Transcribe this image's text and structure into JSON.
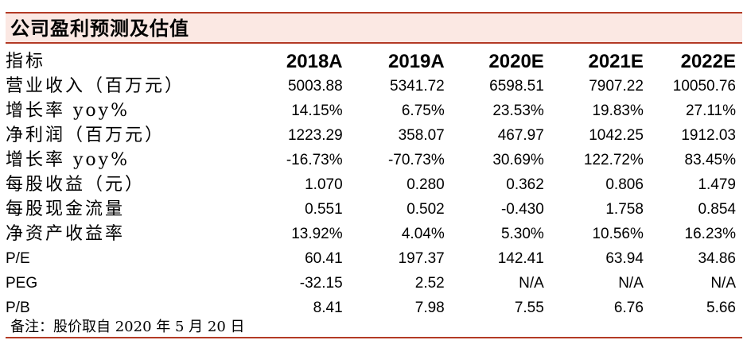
{
  "title": "公司盈利预测及估值",
  "table": {
    "header": {
      "label": "指标",
      "years": [
        "2018A",
        "2019A",
        "2020E",
        "2021E",
        "2022E"
      ]
    },
    "rows": [
      {
        "label": "营业收入（百万元）",
        "values": [
          "5003.88",
          "5341.72",
          "6598.51",
          "7907.22",
          "10050.76"
        ]
      },
      {
        "label": "增长率 yoy%",
        "values": [
          "14.15%",
          "6.75%",
          "23.53%",
          "19.83%",
          "27.11%"
        ]
      },
      {
        "label": "净利润（百万元）",
        "values": [
          "1223.29",
          "358.07",
          "467.97",
          "1042.25",
          "1912.03"
        ]
      },
      {
        "label": "增长率 yoy%",
        "values": [
          "-16.73%",
          "-70.73%",
          "30.69%",
          "122.72%",
          "83.45%"
        ]
      },
      {
        "label": "每股收益（元）",
        "values": [
          "1.070",
          "0.280",
          "0.362",
          "0.806",
          "1.479"
        ]
      },
      {
        "label": "每股现金流量",
        "values": [
          "0.551",
          "0.502",
          "-0.430",
          "1.758",
          "0.854"
        ]
      },
      {
        "label": "净资产收益率",
        "values": [
          "13.92%",
          "4.04%",
          "5.30%",
          "10.56%",
          "16.23%"
        ]
      },
      {
        "label": "P/E",
        "values": [
          "60.41",
          "197.37",
          "142.41",
          "63.94",
          "34.86"
        ]
      },
      {
        "label": "PEG",
        "values": [
          "-32.15",
          "2.52",
          "N/A",
          "N/A",
          "N/A"
        ]
      },
      {
        "label": "P/B",
        "values": [
          "8.41",
          "7.98",
          "7.55",
          "6.76",
          "5.66"
        ]
      }
    ]
  },
  "note": "备注：股价取自 2020 年 5 月 20 日",
  "colors": {
    "rule": "#b33a25",
    "title_bg": "#fbe8e3"
  }
}
